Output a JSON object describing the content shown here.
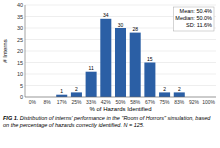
{
  "chart_data": {
    "type": "bar",
    "categories": [
      "0%",
      "8%",
      "17%",
      "25%",
      "33%",
      "42%",
      "50%",
      "58%",
      "67%",
      "75%",
      "83%",
      "92%",
      "100%"
    ],
    "values": [
      0,
      0,
      1,
      2,
      11,
      34,
      30,
      28,
      15,
      2,
      2,
      0,
      0
    ],
    "color": "#2b5fa5",
    "x_label": "% of Hazards Identified",
    "y_label": "# Interns",
    "ylim": [
      0,
      40
    ],
    "yticks": [
      0,
      5,
      10,
      15,
      20,
      25,
      30,
      35,
      40
    ],
    "grid": true,
    "data_labels": true,
    "annotations": [
      "Mean: 50.4%",
      "Median: 50.0%",
      "SD: 11.6%"
    ],
    "caption_label": "FIG 1.",
    "caption": "Distribution of interns' performance in the \"Room of Horrors\" simulation, based on the percentage of hazards correctly identified. N = 125."
  }
}
